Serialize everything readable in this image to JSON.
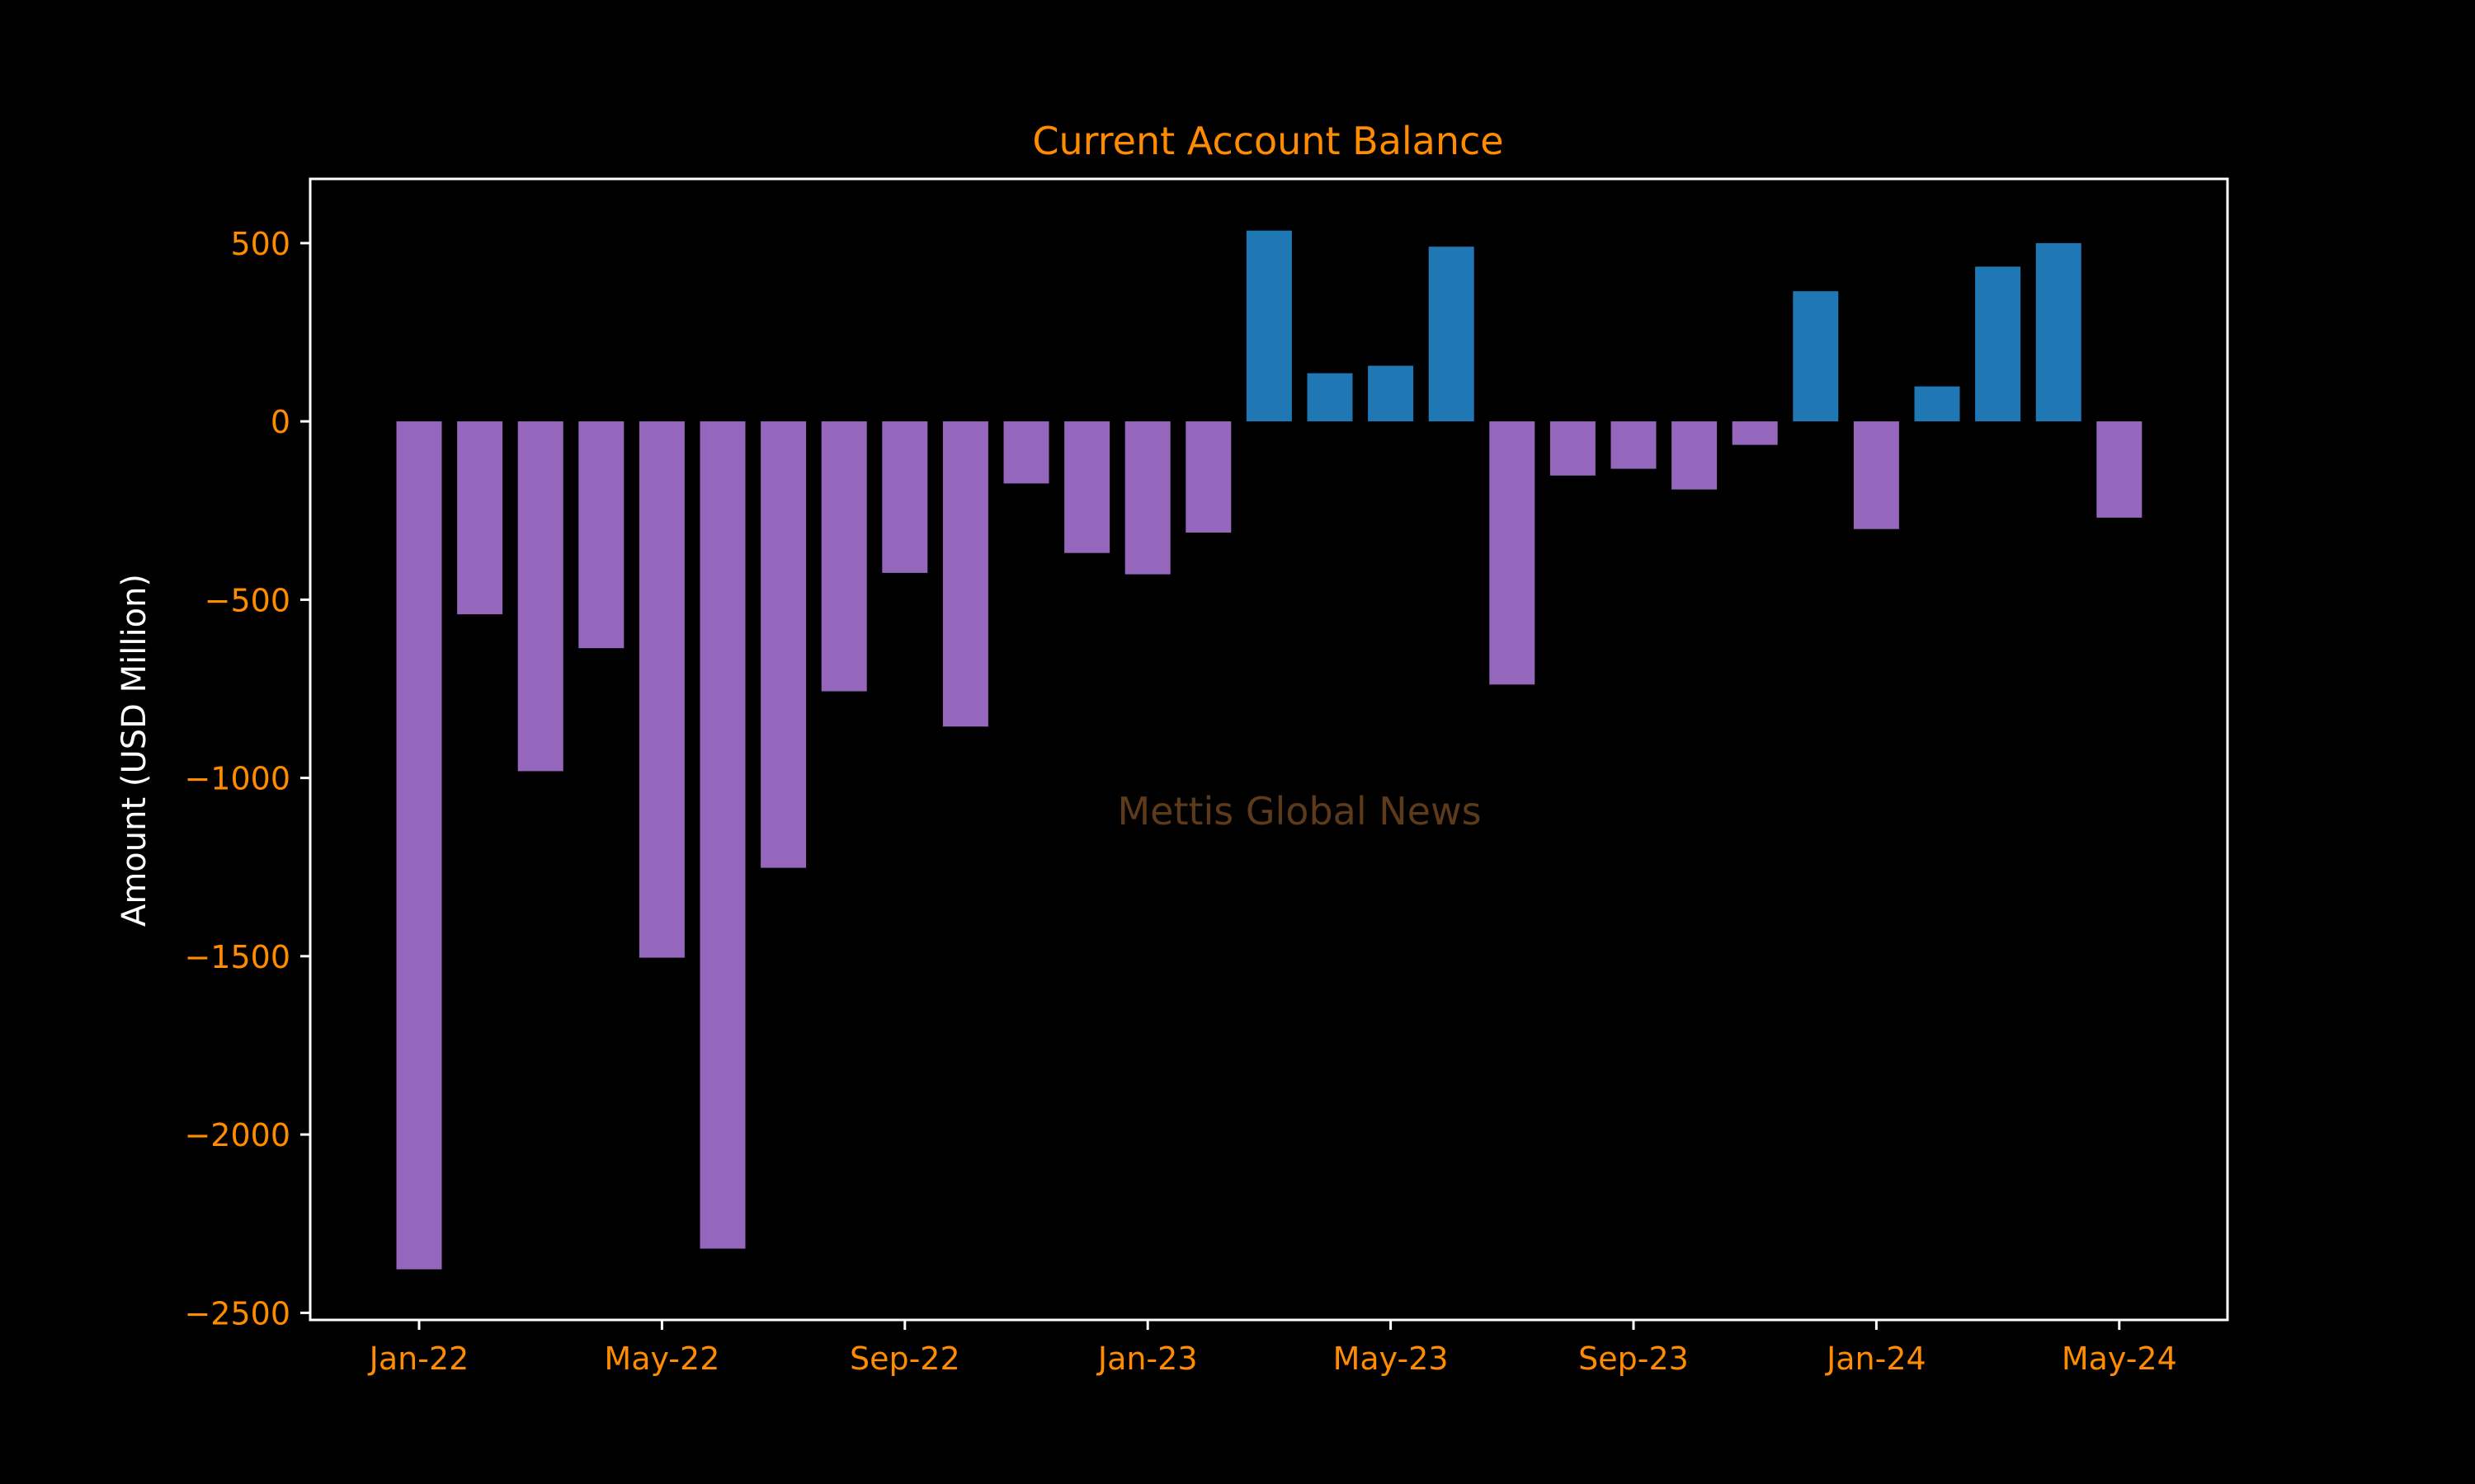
{
  "chart_data": {
    "type": "bar",
    "title": "Current Account Balance",
    "xlabel": "",
    "ylabel": "Amount (USD Million)",
    "watermark": "Mettis Global News",
    "categories": [
      "Jan-22",
      "Feb-22",
      "Mar-22",
      "Apr-22",
      "May-22",
      "Jun-22",
      "Jul-22",
      "Aug-22",
      "Sep-22",
      "Oct-22",
      "Nov-22",
      "Dec-22",
      "Jan-23",
      "Feb-23",
      "Mar-23",
      "Apr-23",
      "May-23",
      "Jun-23",
      "Jul-23",
      "Aug-23",
      "Sep-23",
      "Oct-23",
      "Nov-23",
      "Dec-23",
      "Jan-24",
      "Feb-24",
      "Mar-24",
      "Apr-24",
      "May-24"
    ],
    "values": [
      -2378,
      -541,
      -981,
      -636,
      -1504,
      -2320,
      -1252,
      -757,
      -425,
      -856,
      -174,
      -369,
      -429,
      -312,
      535,
      135,
      156,
      490,
      -738,
      -152,
      -133,
      -191,
      -66,
      365,
      -302,
      98,
      434,
      500,
      -270
    ],
    "x_tick_labels": [
      "Jan-22",
      "May-22",
      "Sep-22",
      "Jan-23",
      "May-23",
      "Sep-23",
      "Jan-24",
      "May-24"
    ],
    "x_tick_indices": [
      0,
      4,
      8,
      12,
      16,
      20,
      24,
      28
    ],
    "y_ticks": [
      500,
      0,
      -500,
      -1000,
      -1500,
      -2000,
      -2500
    ],
    "ylim": [
      -2520,
      680
    ],
    "grid": false,
    "legend": "none",
    "colors": {
      "positive": "#1f77b4",
      "negative": "#9467bd",
      "background": "#000000",
      "title": "#ff8c00",
      "tick_labels": "#ff8c00",
      "ylabel": "#ffffff",
      "axes": "#ffffff",
      "watermark": "#5c3a1a"
    }
  }
}
